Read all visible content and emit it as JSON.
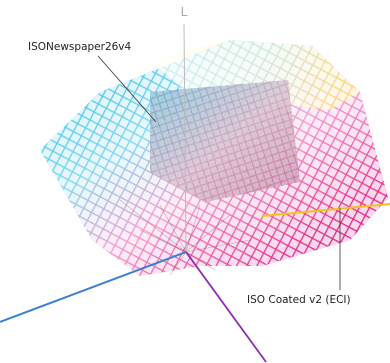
{
  "labels": {
    "axis": "L",
    "inner_profile": "ISONewspaper26v4",
    "outer_profile": "ISO Coated v2 (ECI)"
  }
}
